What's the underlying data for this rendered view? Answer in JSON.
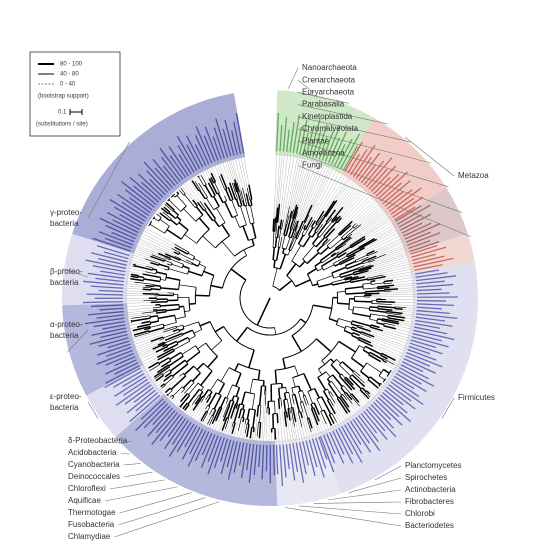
{
  "legend": {
    "items": [
      "80 - 100",
      "40 - 80",
      "0 - 40"
    ],
    "note": "(bootstrap support)",
    "scale": "0.1",
    "scale_note": "(substitutions / site)"
  },
  "right_labels": [
    "Nanoarchaeota",
    "Crenarchaeota",
    "Euryarchaeota",
    "Parabasalia",
    "Kinetoplastida",
    "Chromalveolata",
    "Plantae",
    "Amoebozoa",
    "Fungi"
  ],
  "metazoa": "Metazoa",
  "firmicutes": "Firmicutes",
  "bottom_right_labels": [
    "Planctomycetes",
    "Spirochetes",
    "Actinobacteria",
    "Fibrobacteres",
    "Chlorobi",
    "Bacteriodetes"
  ],
  "left_groups": [
    [
      "γ-proteo-",
      "bacteria"
    ],
    [
      "β-proteo-",
      "bacteria"
    ],
    [
      "α-proteo-",
      "bacteria"
    ],
    [
      "ε-proteo-",
      "bacteria"
    ]
  ],
  "bottom_left_labels": [
    "δ-Proteobacteria",
    "Acidobacteria",
    "Cyanobacteria",
    "Deinococcales",
    "Chloroflexi",
    "Aquificae",
    "Thermotogae",
    "Fusobacteria",
    "Chlamydiae"
  ]
}
